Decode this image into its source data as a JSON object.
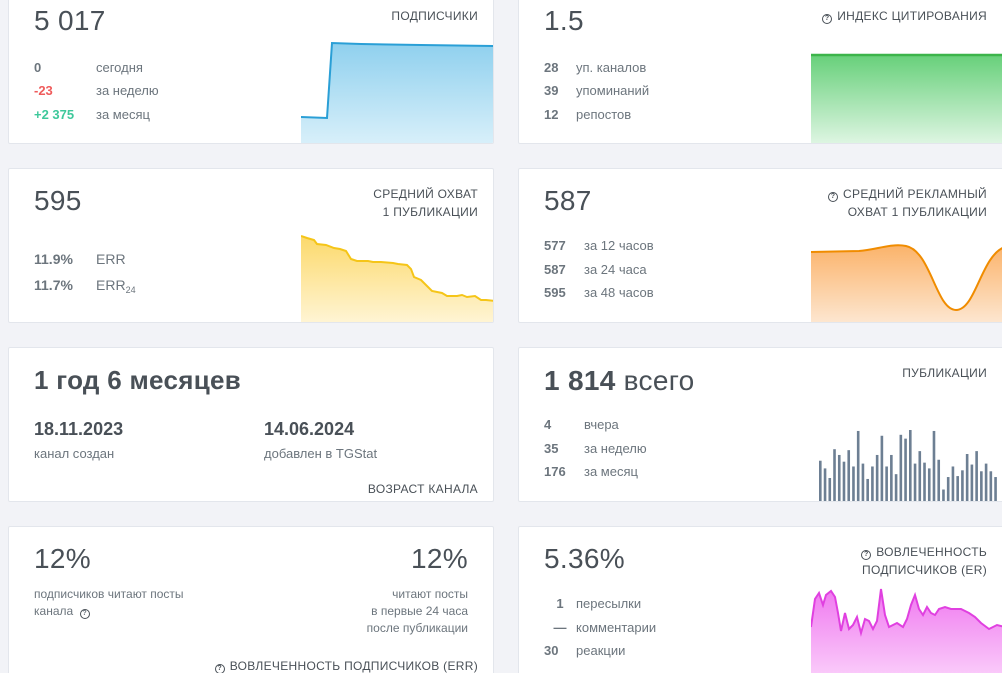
{
  "subscribers": {
    "value": "5 017",
    "label": "ПОДПИСЧИКИ",
    "rows": [
      {
        "value": "0",
        "text": "сегодня"
      },
      {
        "value": "-23",
        "text": "за неделю"
      },
      {
        "value": "+2 375",
        "text": "за месяц"
      }
    ],
    "color": "#2a9fd6"
  },
  "citation": {
    "value": "1.5",
    "label": "ИНДЕКС ЦИТИРОВАНИЯ",
    "rows": [
      {
        "value": "28",
        "text": "уп. каналов"
      },
      {
        "value": "39",
        "text": "упоминаний"
      },
      {
        "value": "12",
        "text": "репостов"
      }
    ],
    "color": "#3cb44a"
  },
  "avg_reach": {
    "value": "595",
    "label_line1": "СРЕДНИЙ ОХВАТ",
    "label_line2": "1 ПУБЛИКАЦИИ",
    "rows": [
      {
        "value": "11.9%",
        "text": "ERR"
      },
      {
        "value": "11.7%",
        "text": "ERR",
        "sub": "24"
      }
    ],
    "color": "#f5c518"
  },
  "ad_reach": {
    "value": "587",
    "label_line1": "СРЕДНИЙ РЕКЛАМНЫЙ",
    "label_line2": "ОХВАТ 1 ПУБЛИКАЦИИ",
    "rows": [
      {
        "value": "577",
        "text": "за 12 часов"
      },
      {
        "value": "587",
        "text": "за 24 часа"
      },
      {
        "value": "595",
        "text": "за 48 часов"
      }
    ],
    "color": "#f08c00"
  },
  "age": {
    "value": "1 год 6 месяцев",
    "created_date": "18.11.2023",
    "created_label": "канал создан",
    "added_date": "14.06.2024",
    "added_label": "добавлен в TGStat",
    "label": "ВОЗРАСТ КАНАЛА"
  },
  "posts": {
    "value": "1 814",
    "value_suffix": "всего",
    "label": "ПУБЛИКАЦИИ",
    "rows": [
      {
        "value": "4",
        "text": "вчера"
      },
      {
        "value": "35",
        "text": "за неделю"
      },
      {
        "value": "176",
        "text": "за месяц"
      }
    ],
    "bar_values": [
      43,
      35,
      25,
      55,
      49,
      42,
      54,
      37,
      74,
      40,
      24,
      37,
      49,
      69,
      37,
      49,
      29,
      70,
      66,
      75,
      40,
      53,
      41,
      35,
      74,
      44,
      13,
      26,
      37,
      27,
      33,
      50,
      39,
      53,
      32,
      40,
      32,
      26
    ],
    "color": "#6d7f93"
  },
  "err": {
    "left_value": "12%",
    "left_text_line1": "подписчиков читают посты",
    "left_text_line2": "канала",
    "right_value": "12%",
    "right_text_line1": "читают посты",
    "right_text_line2": "в первые 24 часа",
    "right_text_line3": "после публикации",
    "label": "ВОВЛЕЧЕННОСТЬ ПОДПИСЧИКОВ (ERR)"
  },
  "er": {
    "value": "5.36%",
    "label_line1": "ВОВЛЕЧЕННОСТЬ",
    "label_line2": "ПОДПИСЧИКОВ (ER)",
    "rows": [
      {
        "value": "1",
        "text": "пересылки"
      },
      {
        "value": "—",
        "text": "комментарии"
      },
      {
        "value": "30",
        "text": "реакции"
      }
    ],
    "color": "#e040e0"
  }
}
